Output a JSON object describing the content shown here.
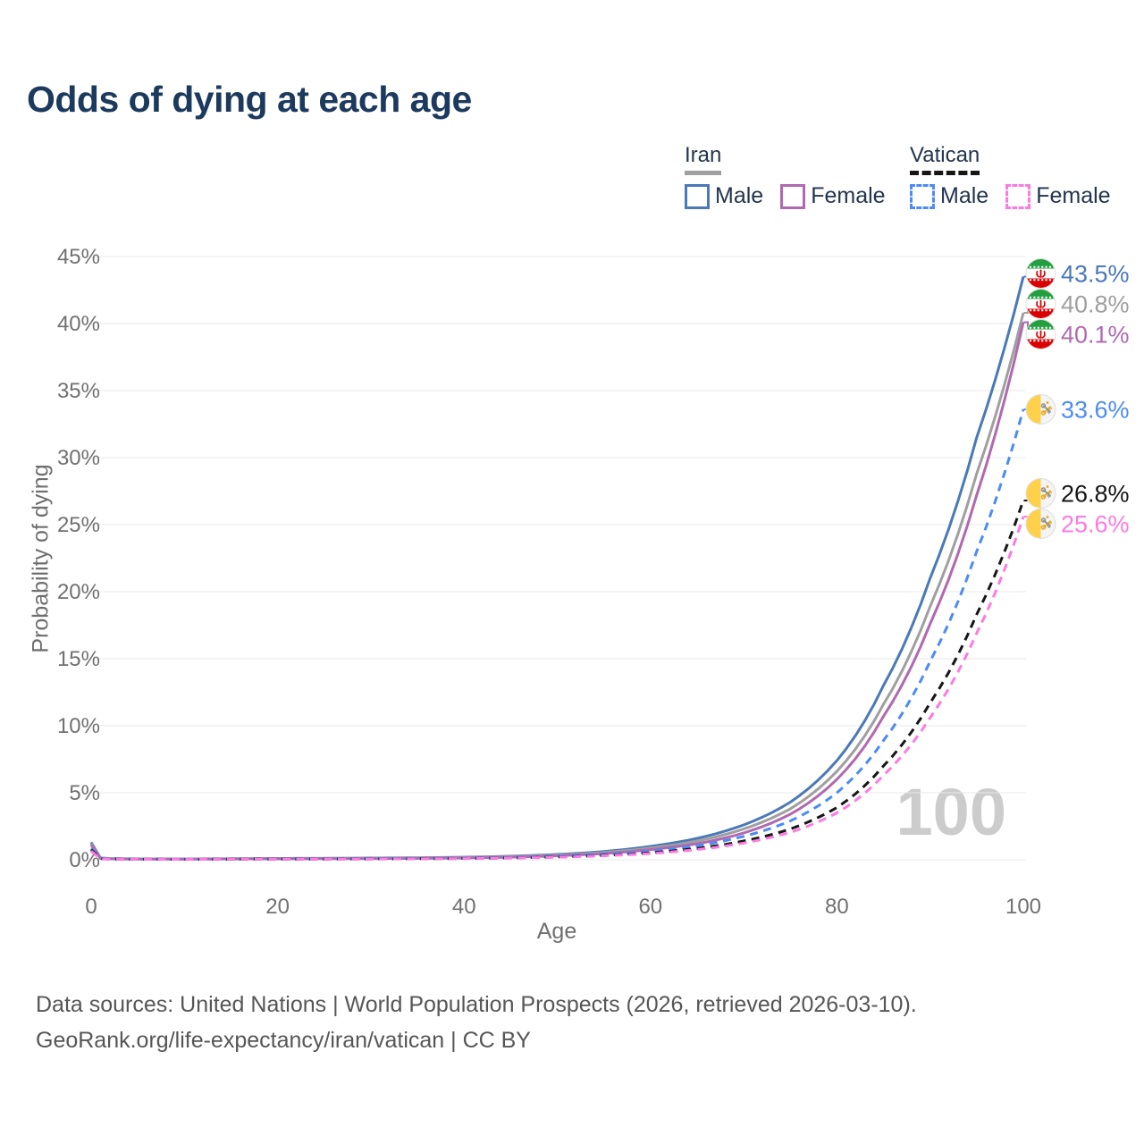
{
  "title": "Odds of dying at each age",
  "legend": {
    "groups": [
      {
        "name": "Iran",
        "line_style": "solid",
        "line_color": "#9f9f9f",
        "items": [
          {
            "label": "Male",
            "color": "#4a79b8",
            "dash": false
          },
          {
            "label": "Female",
            "color": "#b069b1",
            "dash": false
          }
        ]
      },
      {
        "name": "Vatican",
        "line_style": "dashed",
        "line_color": "#161616",
        "items": [
          {
            "label": "Male",
            "color": "#4c8bf5",
            "dash": true
          },
          {
            "label": "Female",
            "color": "#fd7ae1",
            "dash": true
          }
        ]
      }
    ]
  },
  "watermark_age": "100",
  "footer": {
    "line1": "Data sources: United Nations | World Population Prospects (2026, retrieved 2026-03-10).",
    "line2": "GeoRank.org/life-expectancy/iran/vatican | CC BY"
  },
  "chart_data": {
    "type": "line",
    "title": "Odds of dying at each age",
    "xlabel": "Age",
    "ylabel": "Probability of dying",
    "xlim": [
      0,
      100
    ],
    "ylim": [
      0,
      45
    ],
    "x_ticks": [
      0,
      20,
      40,
      60,
      80,
      100
    ],
    "y_ticks": [
      0,
      5,
      10,
      15,
      20,
      25,
      30,
      35,
      40,
      45
    ],
    "y_tick_suffix": "%",
    "grid": true,
    "legend_position": "top-right",
    "x": [
      0,
      1,
      2,
      5,
      10,
      15,
      20,
      25,
      30,
      35,
      40,
      45,
      50,
      55,
      60,
      65,
      70,
      75,
      80,
      85,
      90,
      95,
      100
    ],
    "series": [
      {
        "id": "iran-male",
        "name": "Iran Male",
        "country": "Iran",
        "sex": "Male",
        "flag": "iran",
        "color": "#4a79b8",
        "dash": false,
        "end_label": "43.5%",
        "values": [
          1.3,
          0.14,
          0.09,
          0.07,
          0.06,
          0.08,
          0.1,
          0.11,
          0.13,
          0.15,
          0.19,
          0.27,
          0.4,
          0.62,
          1.0,
          1.6,
          2.6,
          4.3,
          7.4,
          13.0,
          21.0,
          31.5,
          43.5
        ]
      },
      {
        "id": "iran-all",
        "name": "Iran (all)",
        "country": "Iran",
        "sex": "All",
        "flag": "iran",
        "color": "#9f9f9f",
        "dash": false,
        "end_label": "40.8%",
        "values": [
          1.2,
          0.12,
          0.08,
          0.06,
          0.055,
          0.07,
          0.085,
          0.095,
          0.11,
          0.13,
          0.17,
          0.24,
          0.35,
          0.55,
          0.88,
          1.4,
          2.3,
          3.8,
          6.6,
          11.6,
          18.9,
          28.8,
          40.8
        ]
      },
      {
        "id": "iran-female",
        "name": "Iran Female",
        "country": "Iran",
        "sex": "Female",
        "flag": "iran",
        "color": "#b069b1",
        "dash": false,
        "end_label": "40.1%",
        "values": [
          1.1,
          0.1,
          0.07,
          0.05,
          0.05,
          0.06,
          0.07,
          0.08,
          0.09,
          0.11,
          0.14,
          0.2,
          0.3,
          0.47,
          0.76,
          1.2,
          2.0,
          3.4,
          6.0,
          10.7,
          17.6,
          27.2,
          40.1
        ]
      },
      {
        "id": "vatican-male",
        "name": "Vatican Male",
        "country": "Vatican",
        "sex": "Male",
        "flag": "vatican",
        "color": "#4c8bf5",
        "dash": true,
        "end_label": "33.6%",
        "values": [
          0.85,
          0.09,
          0.06,
          0.045,
          0.04,
          0.05,
          0.06,
          0.065,
          0.08,
          0.09,
          0.12,
          0.17,
          0.26,
          0.4,
          0.64,
          1.05,
          1.75,
          2.9,
          5.0,
          8.9,
          14.8,
          23.0,
          33.6
        ]
      },
      {
        "id": "vatican-all",
        "name": "Vatican (all)",
        "country": "Vatican",
        "sex": "All",
        "flag": "vatican",
        "color": "#161616",
        "dash": true,
        "end_label": "26.8%",
        "values": [
          0.75,
          0.08,
          0.05,
          0.04,
          0.035,
          0.04,
          0.05,
          0.055,
          0.06,
          0.08,
          0.1,
          0.14,
          0.21,
          0.33,
          0.52,
          0.85,
          1.4,
          2.3,
          3.9,
          7.0,
          11.7,
          18.3,
          26.8
        ]
      },
      {
        "id": "vatican-female",
        "name": "Vatican Female",
        "country": "Vatican",
        "sex": "Female",
        "flag": "vatican",
        "color": "#fd7ae1",
        "dash": true,
        "end_label": "25.6%",
        "values": [
          0.65,
          0.07,
          0.045,
          0.036,
          0.032,
          0.038,
          0.045,
          0.05,
          0.055,
          0.07,
          0.09,
          0.13,
          0.19,
          0.3,
          0.47,
          0.76,
          1.25,
          2.05,
          3.5,
          6.3,
          10.6,
          16.9,
          25.6
        ]
      }
    ]
  }
}
